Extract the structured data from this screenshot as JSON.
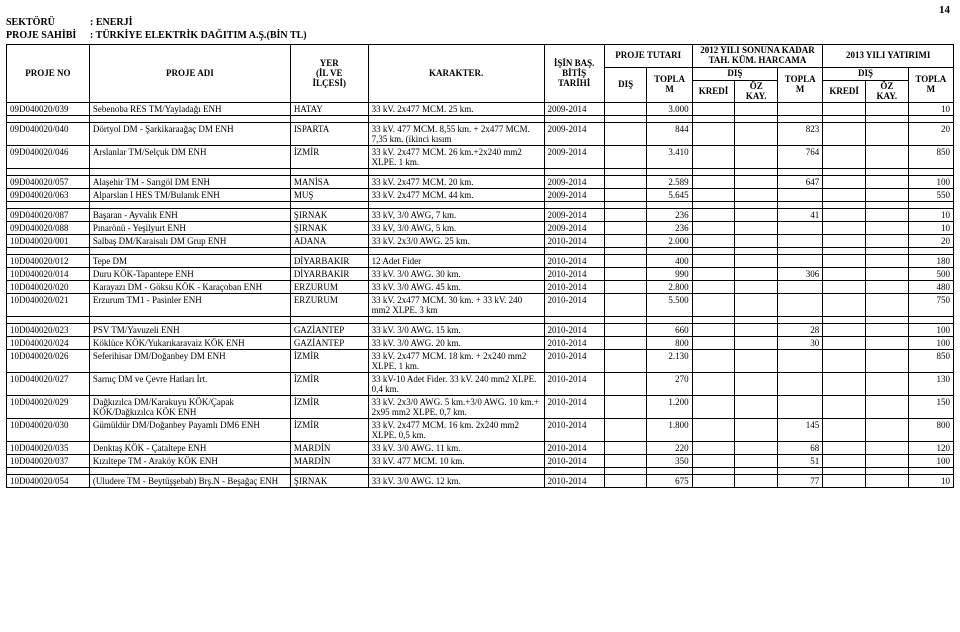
{
  "page_number": "14",
  "header": {
    "sector_label": "SEKTÖRÜ",
    "sector_value": ": ENERJİ",
    "owner_label": "PROJE SAHİBİ",
    "owner_value": ": TÜRKİYE ELEKTRİK DAĞITIM A.Ş.",
    "bin_tl": "(BİN TL)"
  },
  "columns": {
    "proje_no": "PROJE NO",
    "proje_adi": "PROJE ADI",
    "yer": "YER",
    "il_ve": "(İL VE",
    "ilcesi": "İLÇESİ)",
    "karakter": "KARAKTER.",
    "isin_bas": "İŞİN BAŞ.",
    "bitis": "BİTİŞ",
    "tarihi": "TARİHİ",
    "proje_tutari": "PROJE TUTARI",
    "dis1": "DIŞ",
    "toplam1": "TOPLAM",
    "sonuna_kadar": "2012 YILI SONUNA KADAR",
    "tah_kum": "TAH. KÜM. HARCAMA",
    "dis2": "DIŞ",
    "kredi2": "KREDİ",
    "ozkay2": "ÖZ KAY.",
    "toplam2": "TOPLAM",
    "yatirim": "2013 YILI YATIRIMI",
    "dis3": "DIŞ",
    "kredi3": "KREDİ",
    "ozkay3": "ÖZ KAY.",
    "toplam3": "TOPLAM"
  },
  "groups": [
    [
      {
        "no": "09D040020/039",
        "adi": "Sebenoba RES TM/Yayladağı ENH",
        "il": "HATAY",
        "kar": "33 kV. 2x477 MCM. 25 km.",
        "tarih": "2009-2014",
        "pt_dis": "",
        "pt_top": "3.000",
        "h_kredi": "",
        "h_oz": "",
        "h_top": "",
        "y_kredi": "",
        "y_oz": "",
        "y_top": "10"
      }
    ],
    [
      {
        "no": "09D040020/040",
        "adi": "Dörtyol DM - Şarkikaraağaç DM ENH",
        "il": "ISPARTA",
        "kar": "33 kV. 477 MCM. 8,55 km. + 2x477 MCM. 7,35 km. (ikinci kısım",
        "tarih": "2009-2014",
        "pt_dis": "",
        "pt_top": "844",
        "h_kredi": "",
        "h_oz": "",
        "h_top": "823",
        "y_kredi": "",
        "y_oz": "",
        "y_top": "20"
      },
      {
        "no": "09D040020/046",
        "adi": "Arslanlar TM/Selçuk DM ENH",
        "il": "İZMİR",
        "kar": "33 kV. 2x477 MCM. 26 km.+2x240 mm2 XLPE. 1 km.",
        "tarih": "2009-2014",
        "pt_dis": "",
        "pt_top": "3.410",
        "h_kredi": "",
        "h_oz": "",
        "h_top": "764",
        "y_kredi": "",
        "y_oz": "",
        "y_top": "850"
      }
    ],
    [
      {
        "no": "09D040020/057",
        "adi": "Alaşehir TM - Sarıgöl DM ENH",
        "il": "MANİSA",
        "kar": "33 kV. 2x477 MCM. 20 km.",
        "tarih": "2009-2014",
        "pt_dis": "",
        "pt_top": "2.589",
        "h_kredi": "",
        "h_oz": "",
        "h_top": "647",
        "y_kredi": "",
        "y_oz": "",
        "y_top": "100"
      },
      {
        "no": "09D040020/063",
        "adi": "Alparslan I HES TM/Bulanık ENH",
        "il": "MUŞ",
        "kar": "33 kV. 2x477 MCM. 44 km.",
        "tarih": "2009-2014",
        "pt_dis": "",
        "pt_top": "5.645",
        "h_kredi": "",
        "h_oz": "",
        "h_top": "",
        "y_kredi": "",
        "y_oz": "",
        "y_top": "550"
      }
    ],
    [
      {
        "no": "09D040020/087",
        "adi": "Başaran - Ayvalık ENH",
        "il": "ŞIRNAK",
        "kar": "33 kV, 3/0 AWG, 7 km.",
        "tarih": "2009-2014",
        "pt_dis": "",
        "pt_top": "236",
        "h_kredi": "",
        "h_oz": "",
        "h_top": "41",
        "y_kredi": "",
        "y_oz": "",
        "y_top": "10"
      },
      {
        "no": "09D040020/088",
        "adi": "Pınarönü - Yeşilyurt ENH",
        "il": "ŞIRNAK",
        "kar": "33 kV, 3/0 AWG, 5 km.",
        "tarih": "2009-2014",
        "pt_dis": "",
        "pt_top": "236",
        "h_kredi": "",
        "h_oz": "",
        "h_top": "",
        "y_kredi": "",
        "y_oz": "",
        "y_top": "10"
      },
      {
        "no": "10D040020/001",
        "adi": "Salbaş DM/Karaisalı DM Grup ENH",
        "il": "ADANA",
        "kar": "33 kV. 2x3/0 AWG. 25 km.",
        "tarih": "2010-2014",
        "pt_dis": "",
        "pt_top": "2.000",
        "h_kredi": "",
        "h_oz": "",
        "h_top": "",
        "y_kredi": "",
        "y_oz": "",
        "y_top": "20"
      }
    ],
    [
      {
        "no": "10D040020/012",
        "adi": "Tepe DM",
        "il": "DİYARBAKIR",
        "kar": "12 Adet Fider",
        "tarih": "2010-2014",
        "pt_dis": "",
        "pt_top": "400",
        "h_kredi": "",
        "h_oz": "",
        "h_top": "",
        "y_kredi": "",
        "y_oz": "",
        "y_top": "180"
      },
      {
        "no": "10D040020/014",
        "adi": "Duru KÖK-Tapantepe ENH",
        "il": "DİYARBAKIR",
        "kar": "33 kV. 3/0 AWG. 30 km.",
        "tarih": "2010-2014",
        "pt_dis": "",
        "pt_top": "990",
        "h_kredi": "",
        "h_oz": "",
        "h_top": "306",
        "y_kredi": "",
        "y_oz": "",
        "y_top": "500"
      },
      {
        "no": "10D040020/020",
        "adi": "Karayazı DM - Göksu KÖK - Karaçoban ENH",
        "il": "ERZURUM",
        "kar": "33 kV. 3/0 AWG. 45 km.",
        "tarih": "2010-2014",
        "pt_dis": "",
        "pt_top": "2.800",
        "h_kredi": "",
        "h_oz": "",
        "h_top": "",
        "y_kredi": "",
        "y_oz": "",
        "y_top": "480"
      },
      {
        "no": "10D040020/021",
        "adi": "Erzurum TM1 - Pasinler ENH",
        "il": "ERZURUM",
        "kar": "33 kV. 2x477 MCM. 30 km. + 33 kV. 240 mm2 XLPE. 3 km",
        "tarih": "2010-2014",
        "pt_dis": "",
        "pt_top": "5.500",
        "h_kredi": "",
        "h_oz": "",
        "h_top": "",
        "y_kredi": "",
        "y_oz": "",
        "y_top": "750"
      }
    ],
    [
      {
        "no": "10D040020/023",
        "adi": "PSV TM/Yavuzeli ENH",
        "il": "GAZİANTEP",
        "kar": "33 kV. 3/0 AWG. 15 km.",
        "tarih": "2010-2014",
        "pt_dis": "",
        "pt_top": "660",
        "h_kredi": "",
        "h_oz": "",
        "h_top": "28",
        "y_kredi": "",
        "y_oz": "",
        "y_top": "100"
      },
      {
        "no": "10D040020/024",
        "adi": "Köklüce KÖK/Yukarıkaravaiz KÖK ENH",
        "il": "GAZİANTEP",
        "kar": "33 kV. 3/0 AWG. 20 km.",
        "tarih": "2010-2014",
        "pt_dis": "",
        "pt_top": "800",
        "h_kredi": "",
        "h_oz": "",
        "h_top": "30",
        "y_kredi": "",
        "y_oz": "",
        "y_top": "100"
      },
      {
        "no": "10D040020/026",
        "adi": "Seferihisar DM/Doğanbey DM ENH",
        "il": "İZMİR",
        "kar": "33 kV. 2x477 MCM. 18 km. + 2x240 mm2 XLPE. 1 km.",
        "tarih": "2010-2014",
        "pt_dis": "",
        "pt_top": "2.130",
        "h_kredi": "",
        "h_oz": "",
        "h_top": "",
        "y_kredi": "",
        "y_oz": "",
        "y_top": "850"
      },
      {
        "no": "10D040020/027",
        "adi": "Sarnıç DM ve Çevre Hatları İrt.",
        "il": "İZMİR",
        "kar": "33 kV-10 Adet Fider. 33 kV. 240 mm2 XLPE. 0,4 km.",
        "tarih": "2010-2014",
        "pt_dis": "",
        "pt_top": "270",
        "h_kredi": "",
        "h_oz": "",
        "h_top": "",
        "y_kredi": "",
        "y_oz": "",
        "y_top": "130"
      },
      {
        "no": "10D040020/029",
        "adi": "Dağkızılca DM/Karakuyu KÖK/Çapak KÖK/Dağkızılca KÖK ENH",
        "il": "İZMİR",
        "kar": "33 kV. 2x3/0 AWG. 5 km.+3/0 AWG. 10 km.+ 2x95 mm2 XLPE. 0,7 km.",
        "tarih": "2010-2014",
        "pt_dis": "",
        "pt_top": "1.200",
        "h_kredi": "",
        "h_oz": "",
        "h_top": "",
        "y_kredi": "",
        "y_oz": "",
        "y_top": "150"
      },
      {
        "no": "10D040020/030",
        "adi": "Gümüldür DM/Doğanbey Payamlı DM6 ENH",
        "il": "İZMİR",
        "kar": "33 kV. 2x477 MCM. 16 km. 2x240 mm2 XLPE. 0,5 km.",
        "tarih": "2010-2014",
        "pt_dis": "",
        "pt_top": "1.800",
        "h_kredi": "",
        "h_oz": "",
        "h_top": "145",
        "y_kredi": "",
        "y_oz": "",
        "y_top": "800"
      },
      {
        "no": "10D040020/035",
        "adi": "Denktaş KÖK - Çataltepe ENH",
        "il": "MARDİN",
        "kar": "33 kV. 3/0 AWG. 11 km.",
        "tarih": "2010-2014",
        "pt_dis": "",
        "pt_top": "220",
        "h_kredi": "",
        "h_oz": "",
        "h_top": "68",
        "y_kredi": "",
        "y_oz": "",
        "y_top": "120"
      },
      {
        "no": "10D040020/037",
        "adi": "Kızıltepe TM - Araköy KÖK ENH",
        "il": "MARDİN",
        "kar": "33 kV. 477 MCM. 10 km.",
        "tarih": "2010-2014",
        "pt_dis": "",
        "pt_top": "350",
        "h_kredi": "",
        "h_oz": "",
        "h_top": "51",
        "y_kredi": "",
        "y_oz": "",
        "y_top": "100"
      }
    ],
    [
      {
        "no": "10D040020/054",
        "adi": "(Uludere TM - Beytüşşebab) Brş.N - Beşağaç ENH",
        "il": "ŞIRNAK",
        "kar": "33 kV. 3/0 AWG. 12 km.",
        "tarih": "2010-2014",
        "pt_dis": "",
        "pt_top": "675",
        "h_kredi": "",
        "h_oz": "",
        "h_top": "77",
        "y_kredi": "",
        "y_oz": "",
        "y_top": "10"
      }
    ]
  ]
}
